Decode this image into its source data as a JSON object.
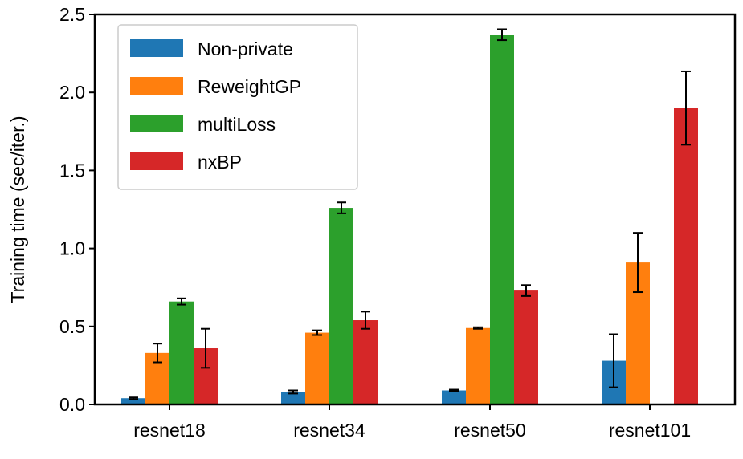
{
  "chart_data": {
    "type": "bar",
    "title": "",
    "xlabel": "",
    "ylabel": "Training time (sec/iter.)",
    "ylim": [
      0,
      2.5
    ],
    "yticks": [
      "0.0",
      "0.5",
      "1.0",
      "1.5",
      "2.0",
      "2.5"
    ],
    "ytick_values": [
      0,
      0.5,
      1.0,
      1.5,
      2.0,
      2.5
    ],
    "grid": false,
    "legend_position": "top-left",
    "categories": [
      "resnet18",
      "resnet34",
      "resnet50",
      "resnet101"
    ],
    "series": [
      {
        "name": "Non-private",
        "color": "#1f77b4",
        "values": [
          0.04,
          0.08,
          0.09,
          0.28
        ],
        "errors": [
          0.005,
          0.01,
          0.005,
          0.17
        ]
      },
      {
        "name": "ReweightGP",
        "color": "#ff7f0e",
        "values": [
          0.33,
          0.46,
          0.49,
          0.91
        ],
        "errors": [
          0.06,
          0.015,
          0.005,
          0.19
        ]
      },
      {
        "name": "multiLoss",
        "color": "#2ca02c",
        "values": [
          0.66,
          1.26,
          2.37,
          null
        ],
        "errors": [
          0.02,
          0.035,
          0.035,
          null
        ]
      },
      {
        "name": "nxBP",
        "color": "#d62728",
        "values": [
          0.36,
          0.54,
          0.73,
          1.9
        ],
        "errors": [
          0.125,
          0.055,
          0.035,
          0.235
        ]
      }
    ]
  }
}
